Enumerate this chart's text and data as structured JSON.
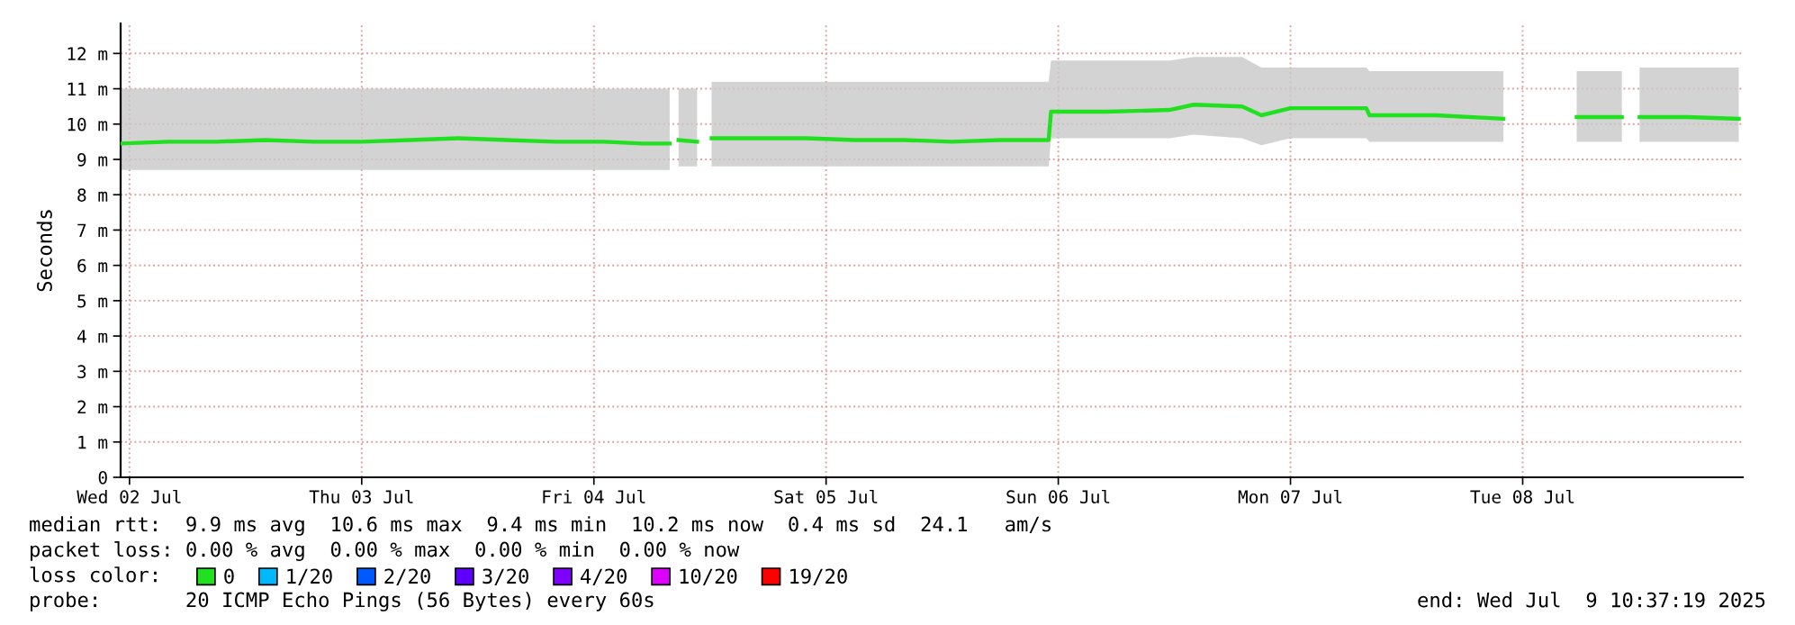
{
  "chart_data": {
    "type": "line",
    "ylabel": "Seconds",
    "x": [
      "2025-07-01T23:05",
      "2025-07-02T04:00",
      "2025-07-02T09:00",
      "2025-07-02T14:00",
      "2025-07-02T19:00",
      "2025-07-03T00:00",
      "2025-07-03T05:00",
      "2025-07-03T10:00",
      "2025-07-03T15:00",
      "2025-07-03T20:00",
      "2025-07-04T01:00",
      "2025-07-04T05:00",
      "2025-07-04T07:50",
      "2025-07-04T08:15",
      "2025-07-04T08:45",
      "2025-07-04T10:40",
      "2025-07-04T11:20",
      "2025-07-04T12:10",
      "2025-07-04T17:00",
      "2025-07-04T22:00",
      "2025-07-05T03:00",
      "2025-07-05T08:00",
      "2025-07-05T13:00",
      "2025-07-05T18:00",
      "2025-07-05T23:00",
      "2025-07-05T23:15",
      "2025-07-06T05:00",
      "2025-07-06T11:30",
      "2025-07-06T14:00",
      "2025-07-06T19:00",
      "2025-07-06T21:00",
      "2025-07-07T00:00",
      "2025-07-07T07:50",
      "2025-07-07T08:10",
      "2025-07-07T15:00",
      "2025-07-07T22:00",
      "2025-07-08T01:00",
      "2025-07-08T05:35",
      "2025-07-08T10:15",
      "2025-07-08T11:10",
      "2025-07-08T12:05",
      "2025-07-08T17:00",
      "2025-07-08T22:20"
    ],
    "series": [
      {
        "name": "0",
        "color": "#20e020",
        "values": [
          9.45,
          9.5,
          9.5,
          9.55,
          9.5,
          9.5,
          9.55,
          9.6,
          9.55,
          9.5,
          9.5,
          9.45,
          9.45,
          null,
          9.55,
          9.5,
          null,
          9.6,
          9.6,
          9.6,
          9.55,
          9.55,
          9.5,
          9.55,
          9.55,
          10.35,
          10.35,
          10.4,
          10.55,
          10.5,
          10.25,
          10.45,
          10.45,
          10.25,
          10.25,
          10.15,
          null,
          10.2,
          10.2,
          null,
          10.2,
          10.2,
          10.15
        ],
        "lower": [
          8.7,
          8.7,
          8.7,
          8.7,
          8.7,
          8.7,
          8.7,
          8.7,
          8.7,
          8.7,
          8.7,
          8.7,
          8.7,
          null,
          8.8,
          8.8,
          null,
          8.8,
          8.8,
          8.8,
          8.8,
          8.8,
          8.8,
          8.8,
          8.8,
          9.6,
          9.6,
          9.6,
          9.7,
          9.6,
          9.4,
          9.6,
          9.6,
          9.5,
          9.5,
          9.5,
          null,
          9.5,
          9.5,
          null,
          9.5,
          9.5,
          9.5
        ],
        "upper": [
          11.0,
          11.0,
          11.0,
          11.0,
          11.0,
          11.0,
          11.0,
          11.0,
          11.0,
          11.0,
          11.0,
          11.0,
          11.0,
          null,
          11.0,
          11.0,
          null,
          11.2,
          11.2,
          11.2,
          11.2,
          11.2,
          11.2,
          11.2,
          11.2,
          11.8,
          11.8,
          11.8,
          11.9,
          11.9,
          11.6,
          11.6,
          11.6,
          11.5,
          11.5,
          11.5,
          null,
          11.5,
          11.5,
          null,
          11.6,
          11.6,
          11.6
        ]
      },
      {
        "name": "1/20",
        "color": "#00b8ff",
        "values": [
          null,
          null,
          null,
          null,
          null,
          null,
          null,
          null,
          null,
          null,
          null,
          null,
          null,
          null,
          null,
          null,
          null,
          null,
          null,
          null,
          null,
          null,
          null,
          null,
          null,
          null,
          null,
          null,
          null,
          null,
          null,
          null,
          null,
          null,
          null,
          null,
          null,
          null,
          null,
          null,
          null,
          null,
          null
        ]
      },
      {
        "name": "2/20",
        "color": "#0059ff",
        "values": [
          null,
          null,
          null,
          null,
          null,
          null,
          null,
          null,
          null,
          null,
          null,
          null,
          null,
          null,
          null,
          null,
          null,
          null,
          null,
          null,
          null,
          null,
          null,
          null,
          null,
          null,
          null,
          null,
          null,
          null,
          null,
          null,
          null,
          null,
          null,
          null,
          null,
          null,
          null,
          null,
          null,
          null,
          null
        ]
      },
      {
        "name": "3/20",
        "color": "#5e00ff",
        "values": [
          null,
          null,
          null,
          null,
          null,
          null,
          null,
          null,
          null,
          null,
          null,
          null,
          null,
          null,
          null,
          null,
          null,
          null,
          null,
          null,
          null,
          null,
          null,
          null,
          null,
          null,
          null,
          null,
          null,
          null,
          null,
          null,
          null,
          null,
          null,
          null,
          null,
          null,
          null,
          null,
          null,
          null,
          null
        ]
      },
      {
        "name": "4/20",
        "color": "#7e00ff",
        "values": [
          null,
          null,
          null,
          null,
          null,
          null,
          null,
          null,
          null,
          null,
          null,
          null,
          null,
          null,
          null,
          null,
          null,
          null,
          null,
          null,
          null,
          null,
          null,
          null,
          null,
          null,
          null,
          null,
          null,
          null,
          null,
          null,
          null,
          null,
          null,
          null,
          null,
          null,
          null,
          null,
          null,
          null,
          null
        ]
      },
      {
        "name": "10/20",
        "color": "#dd00ff",
        "values": [
          null,
          null,
          null,
          null,
          null,
          null,
          null,
          null,
          null,
          null,
          null,
          null,
          null,
          null,
          null,
          null,
          null,
          null,
          null,
          null,
          null,
          null,
          null,
          null,
          null,
          null,
          null,
          null,
          null,
          null,
          null,
          null,
          null,
          null,
          null,
          null,
          null,
          null,
          null,
          null,
          null,
          null,
          null
        ]
      },
      {
        "name": "19/20",
        "color": "#ff0000",
        "values": [
          null,
          null,
          null,
          null,
          null,
          null,
          null,
          null,
          null,
          null,
          null,
          null,
          null,
          null,
          null,
          null,
          null,
          null,
          null,
          null,
          null,
          null,
          null,
          null,
          null,
          null,
          null,
          null,
          null,
          null,
          null,
          null,
          null,
          null,
          null,
          null,
          null,
          null,
          null,
          null,
          null,
          null,
          null
        ]
      }
    ],
    "legend_title": "loss color:",
    "legend": "bottom left",
    "xlim": [
      "2025-07-01T23:05",
      "2025-07-08T22:45"
    ],
    "xticks": [
      {
        "value": "2025-07-02",
        "label": "Wed 02 Jul"
      },
      {
        "value": "2025-07-03",
        "label": "Thu 03 Jul"
      },
      {
        "value": "2025-07-04",
        "label": "Fri 04 Jul"
      },
      {
        "value": "2025-07-05",
        "label": "Sat 05 Jul"
      },
      {
        "value": "2025-07-06",
        "label": "Sun 06 Jul"
      },
      {
        "value": "2025-07-07",
        "label": "Mon 07 Jul"
      },
      {
        "value": "2025-07-08",
        "label": "Tue 08 Jul"
      }
    ],
    "ylim": [
      0,
      12.85
    ],
    "yticks": [
      0,
      {
        "value": 1,
        "label": "1 m"
      },
      {
        "value": 2,
        "label": "2 m"
      },
      {
        "value": 3,
        "label": "3 m"
      },
      {
        "value": 4,
        "label": "4 m"
      },
      {
        "value": 5,
        "label": "5 m"
      },
      {
        "value": 6,
        "label": "6 m"
      },
      {
        "value": 7,
        "label": "7 m"
      },
      {
        "value": 8,
        "label": "8 m"
      },
      {
        "value": 9,
        "label": "9 m"
      },
      {
        "value": 10,
        "label": "10 m"
      },
      {
        "value": 11,
        "label": "11 m"
      },
      {
        "value": 12,
        "label": "12 m"
      }
    ],
    "grid": true,
    "annotations": [
      "median rtt:  9.9 ms avg  10.6 ms max  9.4 ms min  10.2 ms now  0.4 ms sd  24.1   am/s",
      "packet loss: 0.00 % avg  0.00 % max  0.00 % min  0.00 % now",
      "probe:       20 ICMP Echo Pings (56 Bytes) every 60s",
      "end: Wed Jul  9 10:37:19 2025"
    ]
  }
}
